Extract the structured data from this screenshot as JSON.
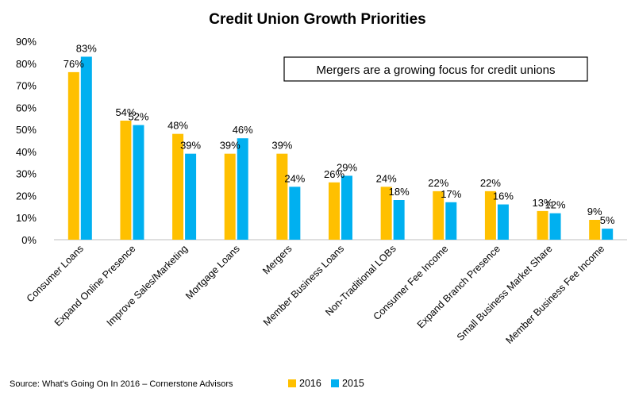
{
  "chart_data": {
    "type": "bar",
    "title": "Credit Union Growth Priorities",
    "annotation": "Mergers are a growing focus for credit unions",
    "source": "Source: What's Going On In 2016 – Cornerstone Advisors",
    "categories": [
      "Consumer Loans",
      "Expand Online Presence",
      "Improve Sales/Marketing",
      "Mortgage Loans",
      "Mergers",
      "Member Business Loans",
      "Non-Traditional LOBs",
      "Consumer Fee Income",
      "Expand Branch Presence",
      "Small Business Market Share",
      "Member Business Fee Income"
    ],
    "series": [
      {
        "name": "2016",
        "color": "#FFC000",
        "values": [
          76,
          54,
          48,
          39,
          39,
          26,
          24,
          22,
          22,
          13,
          9
        ],
        "labels": [
          "76%",
          "54%",
          "48%",
          "39%",
          "39%",
          "26%",
          "24%",
          "22%",
          "22%",
          "13%",
          "9%"
        ]
      },
      {
        "name": "2015",
        "color": "#00B0F0",
        "values": [
          83,
          52,
          39,
          46,
          24,
          29,
          18,
          17,
          16,
          12,
          5
        ],
        "labels": [
          "83%",
          "52%",
          "39%",
          "46%",
          "24%",
          "29%",
          "18%",
          "17%",
          "16%",
          "12%",
          "5%"
        ]
      }
    ],
    "ylim": [
      0,
      90
    ],
    "y_ticks": [
      "0%",
      "10%",
      "20%",
      "30%",
      "40%",
      "50%",
      "60%",
      "70%",
      "80%",
      "90%"
    ],
    "grid": false,
    "legend_position": "bottom"
  }
}
